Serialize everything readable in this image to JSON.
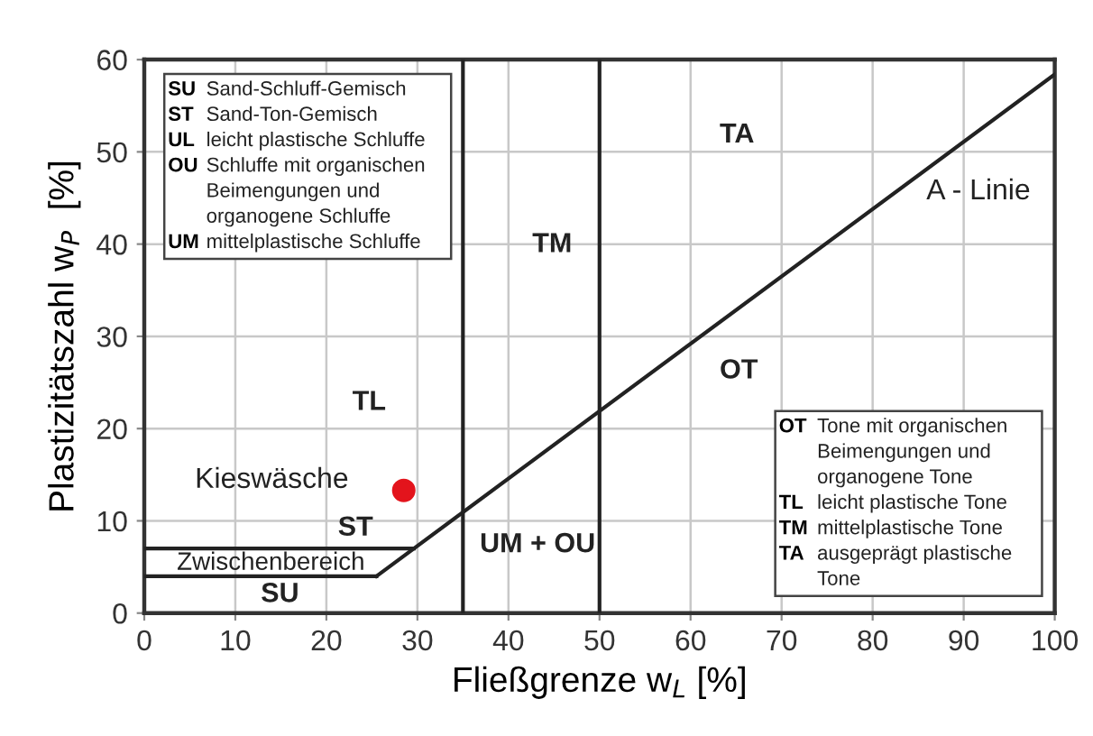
{
  "chart_data": {
    "type": "line",
    "xlabel": "Fließgrenze w$_{L}$ [%]",
    "ylabel": "Plastizitätszahl w$_{P}$  [%]",
    "xlim": [
      0,
      100
    ],
    "ylim": [
      0,
      60
    ],
    "xticks": [
      0,
      10,
      20,
      30,
      40,
      50,
      60,
      70,
      80,
      90,
      100
    ],
    "yticks": [
      0,
      10,
      20,
      30,
      40,
      50,
      60
    ],
    "grid": true,
    "line_style": "solid",
    "series": [
      {
        "color": "#222222",
        "x": [
          25.5,
          100
        ],
        "values": [
          4,
          58.4
        ]
      },
      {
        "color": "#222222",
        "x": [
          0,
          25.5
        ],
        "values": [
          4,
          4
        ]
      },
      {
        "color": "#222222",
        "x": [
          0,
          29.6
        ],
        "values": [
          7,
          7
        ]
      },
      {
        "type": "scatter",
        "marker": "circle",
        "color": "#e3141c",
        "x": [
          28.5
        ],
        "values": [
          13.3
        ]
      }
    ],
    "ref_lines": [
      {
        "axis": "x",
        "value": 35,
        "color": "#222222"
      },
      {
        "axis": "x",
        "value": 50,
        "color": "#222222"
      }
    ],
    "annotations": [
      "TL",
      "TM",
      "TA",
      "OT",
      "UM + OU",
      "ST",
      "SU",
      "Zwischenbereich",
      {
        "text": "Kieswäsche",
        "x": 28.5,
        "y": 13.3
      },
      {
        "text": "A - Linie",
        "x": 84.8,
        "y": 47.3
      },
      "SU Sand-Schluff-Gemisch\nST Sand-Ton-Gemisch\nUL leicht plastische Schluffe\nOU Schluffe mit organischen\nBeimengungen und\norganogene Schluffe\nUM mittelplastische Schluffe",
      "OT Tone mit organischen\nBeimengungen und\norganogene Tone\nTL leicht plastische Tone\nTM mittelplastische Tone\nTA ausgeprägt plastische\nTone"
    ]
  }
}
